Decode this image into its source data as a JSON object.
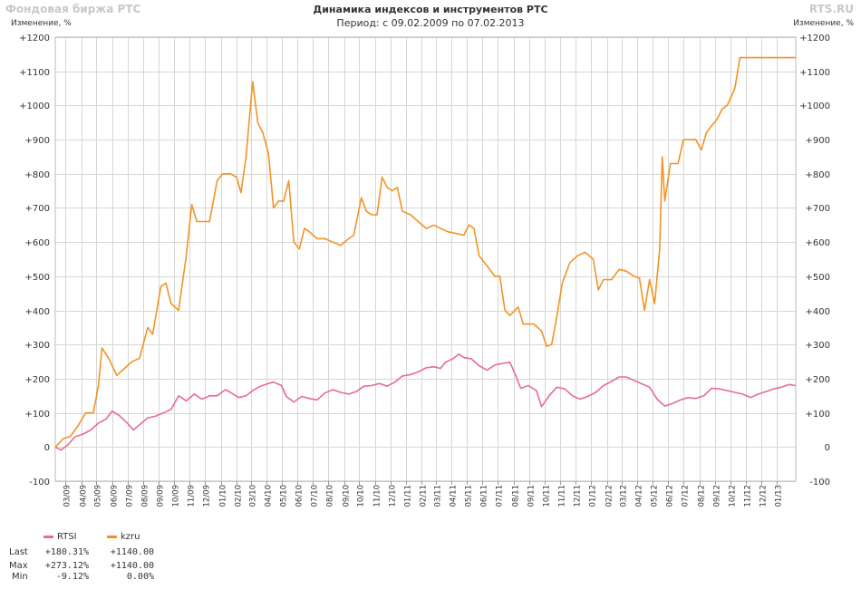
{
  "header": {
    "brand_left": "Фондовая биржа РТС",
    "brand_right": "RTS.RU",
    "title": "Динамика индексов и инструментов РТС",
    "subtitle": "Период: с 09.02.2009 по 07.02.2013",
    "axis_unit_left": "Изменение, %",
    "axis_unit_right": "Изменение, %"
  },
  "legend": {
    "items": [
      {
        "label": "RTSI",
        "color": "#e8699b"
      },
      {
        "label": "kzru",
        "color": "#f39325"
      }
    ]
  },
  "stats": {
    "rows": [
      {
        "label": "Last",
        "rtsi": "+180.31%",
        "kzru": "+1140.00"
      },
      {
        "label": "Max",
        "rtsi": "+273.12%",
        "kzru": "+1140.00"
      },
      {
        "label": "Min",
        "rtsi": "-9.12%",
        "kzru": "0.00%"
      }
    ]
  },
  "chart_data": {
    "type": "line",
    "title": "Динамика индексов и инструментов РТС",
    "subtitle": "Период: с 09.02.2009 по 07.02.2013",
    "ylabel": "Изменение, %",
    "ylim": [
      -100,
      1200
    ],
    "yticks": [
      "+1200",
      "+1100",
      "+1000",
      "+900",
      "+800",
      "+700",
      "+600",
      "+500",
      "+400",
      "+300",
      "+200",
      "+100",
      "0",
      "-100"
    ],
    "ytick_values": [
      1200,
      1100,
      1000,
      900,
      800,
      700,
      600,
      500,
      400,
      300,
      200,
      100,
      0,
      -100
    ],
    "xticks": [
      "03/09",
      "04/09",
      "05/09",
      "06/09",
      "07/09",
      "08/09",
      "09/09",
      "10/09",
      "11/09",
      "12/09",
      "01/10",
      "02/10",
      "03/10",
      "04/10",
      "05/10",
      "06/10",
      "07/10",
      "08/10",
      "09/10",
      "10/10",
      "11/10",
      "12/10",
      "01/11",
      "02/11",
      "03/11",
      "04/11",
      "05/11",
      "06/11",
      "07/11",
      "08/11",
      "09/11",
      "10/11",
      "11/11",
      "12/11",
      "01/12",
      "02/12",
      "03/12",
      "04/12",
      "05/12",
      "06/12",
      "07/12",
      "08/12",
      "09/12",
      "10/12",
      "11/12",
      "12/12",
      "01/13"
    ],
    "grid": true,
    "legend_position": "bottom-left",
    "x_start": "2009-02-09",
    "x_end": "2013-02-07",
    "series": [
      {
        "name": "RTSI",
        "color": "#e8699b",
        "points": [
          [
            "2009-02-09",
            0
          ],
          [
            "2009-02-20",
            -9
          ],
          [
            "2009-03-05",
            5
          ],
          [
            "2009-03-20",
            30
          ],
          [
            "2009-04-05",
            38
          ],
          [
            "2009-04-20",
            50
          ],
          [
            "2009-05-05",
            70
          ],
          [
            "2009-05-20",
            82
          ],
          [
            "2009-06-01",
            105
          ],
          [
            "2009-06-15",
            92
          ],
          [
            "2009-07-01",
            70
          ],
          [
            "2009-07-13",
            50
          ],
          [
            "2009-07-25",
            65
          ],
          [
            "2009-08-10",
            85
          ],
          [
            "2009-08-25",
            90
          ],
          [
            "2009-09-10",
            100
          ],
          [
            "2009-09-25",
            110
          ],
          [
            "2009-10-10",
            150
          ],
          [
            "2009-10-25",
            135
          ],
          [
            "2009-11-10",
            155
          ],
          [
            "2009-11-25",
            140
          ],
          [
            "2009-12-10",
            150
          ],
          [
            "2009-12-25",
            150
          ],
          [
            "2010-01-10",
            168
          ],
          [
            "2010-01-20",
            160
          ],
          [
            "2010-02-05",
            145
          ],
          [
            "2010-02-20",
            150
          ],
          [
            "2010-03-05",
            165
          ],
          [
            "2010-03-20",
            178
          ],
          [
            "2010-04-05",
            186
          ],
          [
            "2010-04-15",
            190
          ],
          [
            "2010-05-01",
            180
          ],
          [
            "2010-05-10",
            148
          ],
          [
            "2010-05-25",
            132
          ],
          [
            "2010-06-10",
            148
          ],
          [
            "2010-06-25",
            142
          ],
          [
            "2010-07-10",
            138
          ],
          [
            "2010-07-25",
            158
          ],
          [
            "2010-08-10",
            168
          ],
          [
            "2010-08-25",
            160
          ],
          [
            "2010-09-10",
            155
          ],
          [
            "2010-09-25",
            162
          ],
          [
            "2010-10-10",
            178
          ],
          [
            "2010-10-25",
            180
          ],
          [
            "2010-11-10",
            186
          ],
          [
            "2010-11-25",
            178
          ],
          [
            "2010-12-10",
            190
          ],
          [
            "2010-12-25",
            208
          ],
          [
            "2011-01-10",
            212
          ],
          [
            "2011-01-25",
            220
          ],
          [
            "2011-02-10",
            232
          ],
          [
            "2011-02-25",
            235
          ],
          [
            "2011-03-10",
            230
          ],
          [
            "2011-03-20",
            248
          ],
          [
            "2011-04-05",
            260
          ],
          [
            "2011-04-15",
            272
          ],
          [
            "2011-04-25",
            262
          ],
          [
            "2011-05-10",
            258
          ],
          [
            "2011-05-25",
            238
          ],
          [
            "2011-06-10",
            225
          ],
          [
            "2011-06-25",
            240
          ],
          [
            "2011-07-10",
            245
          ],
          [
            "2011-07-25",
            248
          ],
          [
            "2011-08-05",
            210
          ],
          [
            "2011-08-15",
            172
          ],
          [
            "2011-08-30",
            180
          ],
          [
            "2011-09-15",
            165
          ],
          [
            "2011-09-25",
            118
          ],
          [
            "2011-10-10",
            150
          ],
          [
            "2011-10-25",
            175
          ],
          [
            "2011-11-10",
            170
          ],
          [
            "2011-11-25",
            150
          ],
          [
            "2011-12-10",
            140
          ],
          [
            "2011-12-25",
            148
          ],
          [
            "2012-01-10",
            160
          ],
          [
            "2012-01-25",
            180
          ],
          [
            "2012-02-10",
            192
          ],
          [
            "2012-02-25",
            205
          ],
          [
            "2012-03-10",
            205
          ],
          [
            "2012-03-25",
            195
          ],
          [
            "2012-04-10",
            185
          ],
          [
            "2012-04-25",
            175
          ],
          [
            "2012-05-10",
            140
          ],
          [
            "2012-05-25",
            120
          ],
          [
            "2012-06-10",
            128
          ],
          [
            "2012-06-25",
            138
          ],
          [
            "2012-07-10",
            145
          ],
          [
            "2012-07-25",
            142
          ],
          [
            "2012-08-10",
            150
          ],
          [
            "2012-08-25",
            172
          ],
          [
            "2012-09-10",
            170
          ],
          [
            "2012-09-25",
            165
          ],
          [
            "2012-10-10",
            160
          ],
          [
            "2012-10-25",
            155
          ],
          [
            "2012-11-10",
            145
          ],
          [
            "2012-11-25",
            155
          ],
          [
            "2012-12-10",
            162
          ],
          [
            "2012-12-25",
            170
          ],
          [
            "2013-01-10",
            175
          ],
          [
            "2013-01-25",
            183
          ],
          [
            "2013-02-07",
            180
          ]
        ]
      },
      {
        "name": "kzru",
        "color": "#f39325",
        "points": [
          [
            "2009-02-09",
            0
          ],
          [
            "2009-02-25",
            25
          ],
          [
            "2009-03-10",
            30
          ],
          [
            "2009-03-25",
            60
          ],
          [
            "2009-04-10",
            100
          ],
          [
            "2009-04-25",
            100
          ],
          [
            "2009-05-05",
            180
          ],
          [
            "2009-05-12",
            290
          ],
          [
            "2009-05-25",
            260
          ],
          [
            "2009-06-10",
            210
          ],
          [
            "2009-06-25",
            230
          ],
          [
            "2009-07-10",
            250
          ],
          [
            "2009-07-25",
            260
          ],
          [
            "2009-08-10",
            350
          ],
          [
            "2009-08-20",
            330
          ],
          [
            "2009-09-05",
            470
          ],
          [
            "2009-09-15",
            480
          ],
          [
            "2009-09-25",
            420
          ],
          [
            "2009-10-10",
            400
          ],
          [
            "2009-10-25",
            560
          ],
          [
            "2009-11-05",
            710
          ],
          [
            "2009-11-15",
            660
          ],
          [
            "2009-11-25",
            660
          ],
          [
            "2009-12-10",
            660
          ],
          [
            "2009-12-25",
            780
          ],
          [
            "2010-01-05",
            800
          ],
          [
            "2010-01-20",
            800
          ],
          [
            "2010-02-01",
            790
          ],
          [
            "2010-02-10",
            745
          ],
          [
            "2010-02-20",
            850
          ],
          [
            "2010-03-05",
            1070
          ],
          [
            "2010-03-15",
            950
          ],
          [
            "2010-03-25",
            920
          ],
          [
            "2010-04-05",
            860
          ],
          [
            "2010-04-15",
            700
          ],
          [
            "2010-04-25",
            720
          ],
          [
            "2010-05-05",
            720
          ],
          [
            "2010-05-15",
            780
          ],
          [
            "2010-05-25",
            600
          ],
          [
            "2010-06-05",
            580
          ],
          [
            "2010-06-15",
            640
          ],
          [
            "2010-06-25",
            630
          ],
          [
            "2010-07-10",
            610
          ],
          [
            "2010-07-25",
            610
          ],
          [
            "2010-08-10",
            600
          ],
          [
            "2010-08-25",
            590
          ],
          [
            "2010-09-10",
            610
          ],
          [
            "2010-09-20",
            620
          ],
          [
            "2010-10-05",
            730
          ],
          [
            "2010-10-15",
            690
          ],
          [
            "2010-10-25",
            680
          ],
          [
            "2010-11-05",
            680
          ],
          [
            "2010-11-15",
            790
          ],
          [
            "2010-11-25",
            760
          ],
          [
            "2010-12-05",
            750
          ],
          [
            "2010-12-15",
            760
          ],
          [
            "2010-12-25",
            690
          ],
          [
            "2011-01-10",
            680
          ],
          [
            "2011-01-25",
            660
          ],
          [
            "2011-02-10",
            640
          ],
          [
            "2011-02-25",
            650
          ],
          [
            "2011-03-10",
            640
          ],
          [
            "2011-03-25",
            630
          ],
          [
            "2011-04-10",
            625
          ],
          [
            "2011-04-25",
            620
          ],
          [
            "2011-05-05",
            650
          ],
          [
            "2011-05-15",
            640
          ],
          [
            "2011-05-25",
            560
          ],
          [
            "2011-06-10",
            530
          ],
          [
            "2011-06-25",
            500
          ],
          [
            "2011-07-05",
            500
          ],
          [
            "2011-07-15",
            400
          ],
          [
            "2011-07-25",
            385
          ],
          [
            "2011-08-10",
            410
          ],
          [
            "2011-08-20",
            360
          ],
          [
            "2011-09-10",
            360
          ],
          [
            "2011-09-25",
            340
          ],
          [
            "2011-10-05",
            295
          ],
          [
            "2011-10-15",
            300
          ],
          [
            "2011-10-25",
            380
          ],
          [
            "2011-11-05",
            480
          ],
          [
            "2011-11-20",
            540
          ],
          [
            "2011-12-05",
            560
          ],
          [
            "2011-12-20",
            570
          ],
          [
            "2012-01-05",
            550
          ],
          [
            "2012-01-15",
            460
          ],
          [
            "2012-01-25",
            490
          ],
          [
            "2012-02-10",
            490
          ],
          [
            "2012-02-25",
            520
          ],
          [
            "2012-03-10",
            515
          ],
          [
            "2012-03-25",
            500
          ],
          [
            "2012-04-05",
            495
          ],
          [
            "2012-04-15",
            400
          ],
          [
            "2012-04-25",
            490
          ],
          [
            "2012-05-05",
            420
          ],
          [
            "2012-05-15",
            580
          ],
          [
            "2012-05-20",
            850
          ],
          [
            "2012-05-25",
            720
          ],
          [
            "2012-06-05",
            830
          ],
          [
            "2012-06-20",
            830
          ],
          [
            "2012-07-01",
            900
          ],
          [
            "2012-07-15",
            900
          ],
          [
            "2012-07-25",
            900
          ],
          [
            "2012-08-05",
            870
          ],
          [
            "2012-08-15",
            920
          ],
          [
            "2012-08-25",
            940
          ],
          [
            "2012-09-05",
            960
          ],
          [
            "2012-09-15",
            990
          ],
          [
            "2012-09-25",
            1000
          ],
          [
            "2012-10-10",
            1050
          ],
          [
            "2012-10-20",
            1140
          ],
          [
            "2012-11-10",
            1140
          ],
          [
            "2012-12-15",
            1140
          ],
          [
            "2013-01-20",
            1140
          ],
          [
            "2013-02-07",
            1140
          ]
        ]
      }
    ]
  }
}
